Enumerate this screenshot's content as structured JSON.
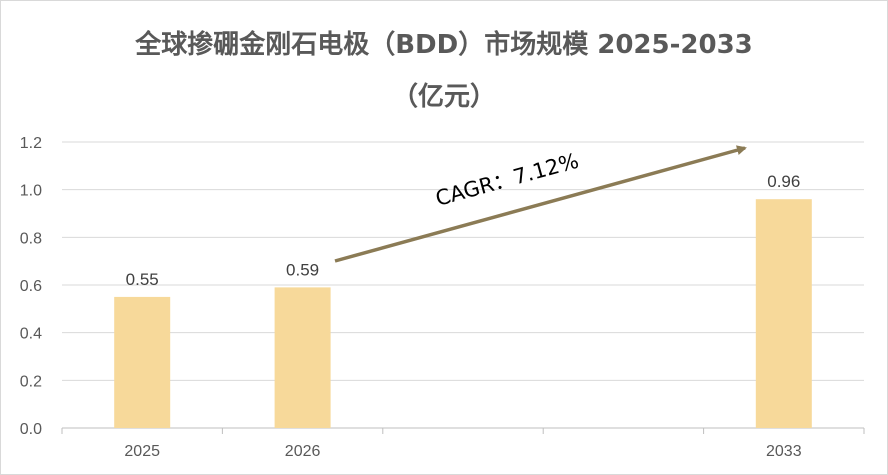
{
  "chart_data": {
    "type": "bar",
    "title_line1": "全球掺硼金刚石电极（BDD）市场规模 2025-2033",
    "title_line2": "（亿元）",
    "categories": [
      "2025",
      "2026",
      "",
      "",
      "2033"
    ],
    "values": [
      0.55,
      0.59,
      null,
      null,
      0.96
    ],
    "data_labels": [
      "0.55",
      "0.59",
      "",
      "",
      "0.96"
    ],
    "yticks": [
      "0.0",
      "0.2",
      "0.4",
      "0.6",
      "0.8",
      "1.0",
      "1.2"
    ],
    "ylim": [
      0,
      1.2
    ],
    "grid": true,
    "annotation": "CAGR：7.12%",
    "colors": {
      "bar": "#F7D99A",
      "arrow": "#8B7B55",
      "grid": "#d9d9d9",
      "axis": "#bfbfbf"
    }
  }
}
